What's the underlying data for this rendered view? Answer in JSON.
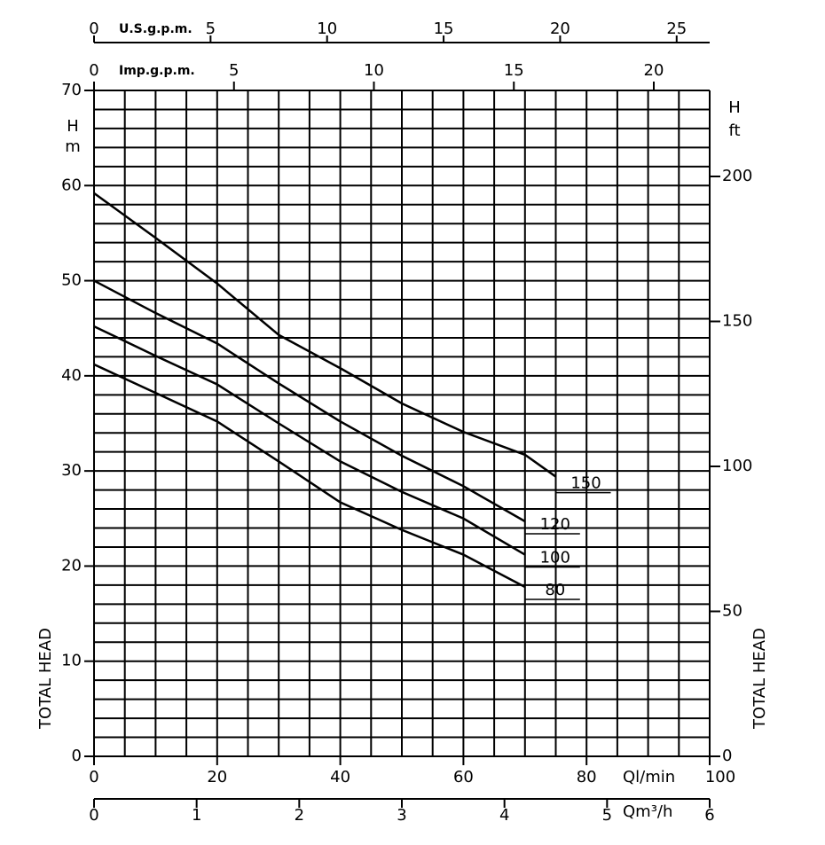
{
  "chart_data": {
    "type": "line",
    "x_label": "Ql/min",
    "xlim": [
      0,
      100
    ],
    "xticks": [
      0,
      20,
      40,
      60,
      80,
      100
    ],
    "x_minor_ticks": [
      0,
      5,
      10,
      15,
      20,
      25,
      30,
      35,
      40,
      45,
      50,
      55,
      60,
      65,
      70,
      75,
      80,
      85,
      90,
      95,
      100
    ],
    "y_label": "TOTAL HEAD",
    "y_symbol": "H",
    "y_unit": "m",
    "ylim": [
      0,
      70
    ],
    "yticks": [
      0,
      10,
      20,
      30,
      40,
      50,
      60,
      70
    ],
    "y_minor_ticks": [
      0,
      2,
      4,
      6,
      8,
      10,
      12,
      14,
      16,
      18,
      20,
      22,
      24,
      26,
      28,
      30,
      32,
      34,
      36,
      38,
      40,
      42,
      44,
      46,
      48,
      50,
      52,
      54,
      56,
      58,
      60,
      62,
      64,
      66,
      68,
      70
    ],
    "y2_label": "TOTAL HEAD",
    "y2_symbol": "H",
    "y2_unit": "ft",
    "y2lim": [
      0,
      229.66
    ],
    "y2ticks": [
      0,
      50,
      100,
      150,
      200
    ],
    "grid": true,
    "x_axes": [
      {
        "label": "U.S.g.p.m.",
        "position": "top",
        "xlim": [
          0,
          26.417
        ],
        "xticks": [
          0,
          5,
          10,
          15,
          20,
          25
        ]
      },
      {
        "label": "Imp.g.p.m.",
        "position": "top",
        "xlim": [
          0,
          21.997
        ],
        "xticks": [
          0,
          5,
          10,
          15,
          20
        ]
      },
      {
        "label": "Qm³/h",
        "position": "bottom",
        "xlim": [
          0,
          6
        ],
        "xticks": [
          0,
          1,
          2,
          3,
          4,
          5,
          6
        ]
      }
    ],
    "series": [
      {
        "name": "150",
        "color": "#000000",
        "x": [
          0,
          10,
          20,
          30,
          40,
          50,
          60,
          70,
          75
        ],
        "values": [
          59.2,
          54.5,
          49.7,
          44.3,
          40.8,
          37.1,
          34.1,
          31.7,
          29.4
        ]
      },
      {
        "name": "120",
        "color": "#000000",
        "x": [
          0,
          10,
          20,
          30,
          40,
          50,
          60,
          70
        ],
        "values": [
          50,
          46.6,
          43.4,
          39.2,
          35.2,
          31.6,
          28.4,
          24.7
        ]
      },
      {
        "name": "100",
        "color": "#000000",
        "x": [
          0,
          10,
          20,
          30,
          40,
          50,
          60,
          70
        ],
        "values": [
          45.2,
          42.1,
          39.1,
          35,
          31,
          27.8,
          25,
          21.2
        ]
      },
      {
        "name": "80",
        "color": "#000000",
        "x": [
          0,
          10,
          20,
          30,
          40,
          50,
          60,
          70
        ],
        "values": [
          41.2,
          38.2,
          35.2,
          31,
          26.7,
          23.8,
          21.2,
          17.8
        ]
      }
    ]
  }
}
